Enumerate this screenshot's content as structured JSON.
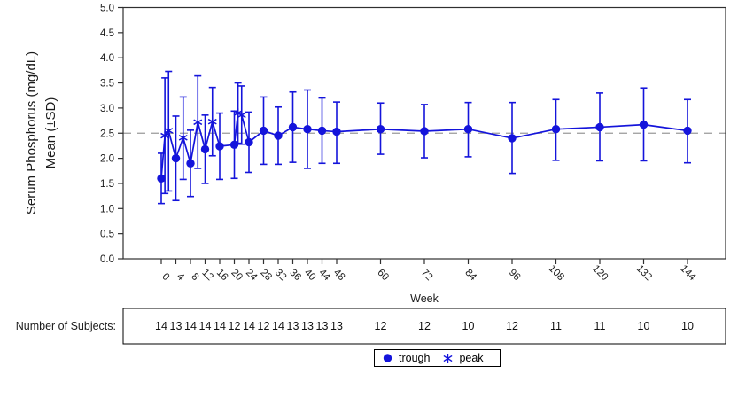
{
  "colors": {
    "series": "#1414DB",
    "reference_line": "#9a9a9a",
    "axis": "#2f2f2f",
    "text": "#1a1a1a",
    "subjects_text": "#111111"
  },
  "chart_data": {
    "type": "line",
    "title": "",
    "ylabel_line1": "Serum Phosphorus (mg/dL)",
    "ylabel_line2": "Mean (±SD)",
    "xlabel": "Week",
    "ylim": [
      0.0,
      5.0
    ],
    "ytick_step": 0.5,
    "yticks": [
      0.0,
      0.5,
      1.0,
      1.5,
      2.0,
      2.5,
      3.0,
      3.5,
      4.0,
      4.5,
      5.0
    ],
    "xticks": [
      0,
      4,
      8,
      12,
      16,
      20,
      24,
      28,
      32,
      36,
      40,
      44,
      48,
      60,
      72,
      84,
      96,
      108,
      120,
      132,
      144
    ],
    "grid": false,
    "reference_line_y": 2.5,
    "error_bars": "±SD",
    "legend_position": "bottom-center",
    "series": [
      {
        "name": "trough",
        "marker": "circle",
        "points": [
          {
            "week": 0,
            "mean": 1.6,
            "lo": 1.1,
            "hi": 2.1
          },
          {
            "week": 4,
            "mean": 2.0,
            "lo": 1.16,
            "hi": 2.84
          },
          {
            "week": 8,
            "mean": 1.9,
            "lo": 1.24,
            "hi": 2.56
          },
          {
            "week": 12,
            "mean": 2.18,
            "lo": 1.5,
            "hi": 2.86
          },
          {
            "week": 16,
            "mean": 2.24,
            "lo": 1.58,
            "hi": 2.9
          },
          {
            "week": 20,
            "mean": 2.27,
            "lo": 1.6,
            "hi": 2.94
          },
          {
            "week": 24,
            "mean": 2.32,
            "lo": 1.72,
            "hi": 2.92
          },
          {
            "week": 28,
            "mean": 2.55,
            "lo": 1.88,
            "hi": 3.22
          },
          {
            "week": 32,
            "mean": 2.45,
            "lo": 1.88,
            "hi": 3.02
          },
          {
            "week": 36,
            "mean": 2.62,
            "lo": 1.92,
            "hi": 3.32
          },
          {
            "week": 40,
            "mean": 2.58,
            "lo": 1.8,
            "hi": 3.36
          },
          {
            "week": 44,
            "mean": 2.55,
            "lo": 1.9,
            "hi": 3.2
          },
          {
            "week": 48,
            "mean": 2.53,
            "lo": 1.9,
            "hi": 3.12
          },
          {
            "week": 60,
            "mean": 2.58,
            "lo": 2.08,
            "hi": 3.1
          },
          {
            "week": 72,
            "mean": 2.54,
            "lo": 2.01,
            "hi": 3.07
          },
          {
            "week": 84,
            "mean": 2.58,
            "lo": 2.03,
            "hi": 3.11
          },
          {
            "week": 96,
            "mean": 2.4,
            "lo": 1.7,
            "hi": 3.11
          },
          {
            "week": 108,
            "mean": 2.58,
            "lo": 1.96,
            "hi": 3.17
          },
          {
            "week": 120,
            "mean": 2.62,
            "lo": 1.95,
            "hi": 3.3
          },
          {
            "week": 132,
            "mean": 2.67,
            "lo": 1.95,
            "hi": 3.4
          },
          {
            "week": 144,
            "mean": 2.55,
            "lo": 1.91,
            "hi": 3.17
          }
        ]
      },
      {
        "name": "peak",
        "marker": "asterisk",
        "points": [
          {
            "week": 1,
            "mean": 2.45,
            "lo": 1.3,
            "hi": 3.6
          },
          {
            "week": 2,
            "mean": 2.55,
            "lo": 1.35,
            "hi": 3.73
          },
          {
            "week": 6,
            "mean": 2.41,
            "lo": 1.58,
            "hi": 3.22
          },
          {
            "week": 10,
            "mean": 2.72,
            "lo": 1.8,
            "hi": 3.64
          },
          {
            "week": 14,
            "mean": 2.73,
            "lo": 2.05,
            "hi": 3.41
          },
          {
            "week": 21,
            "mean": 2.9,
            "lo": 2.3,
            "hi": 3.5
          },
          {
            "week": 22,
            "mean": 2.86,
            "lo": 2.28,
            "hi": 3.44
          }
        ]
      }
    ]
  },
  "subjects": {
    "label": "Number of Subjects:",
    "counts": [
      {
        "week": 0,
        "n": 14
      },
      {
        "week": 4,
        "n": 13
      },
      {
        "week": 8,
        "n": 14
      },
      {
        "week": 12,
        "n": 14
      },
      {
        "week": 16,
        "n": 14
      },
      {
        "week": 20,
        "n": 12
      },
      {
        "week": 24,
        "n": 14
      },
      {
        "week": 28,
        "n": 12
      },
      {
        "week": 32,
        "n": 14
      },
      {
        "week": 36,
        "n": 13
      },
      {
        "week": 40,
        "n": 13
      },
      {
        "week": 44,
        "n": 13
      },
      {
        "week": 48,
        "n": 13
      },
      {
        "week": 60,
        "n": 12
      },
      {
        "week": 72,
        "n": 12
      },
      {
        "week": 84,
        "n": 10
      },
      {
        "week": 96,
        "n": 12
      },
      {
        "week": 108,
        "n": 11
      },
      {
        "week": 120,
        "n": 11
      },
      {
        "week": 132,
        "n": 10
      },
      {
        "week": 144,
        "n": 10
      }
    ]
  },
  "legend": {
    "items": [
      {
        "marker": "circle",
        "label": "trough"
      },
      {
        "marker": "asterisk",
        "label": "peak"
      }
    ]
  }
}
